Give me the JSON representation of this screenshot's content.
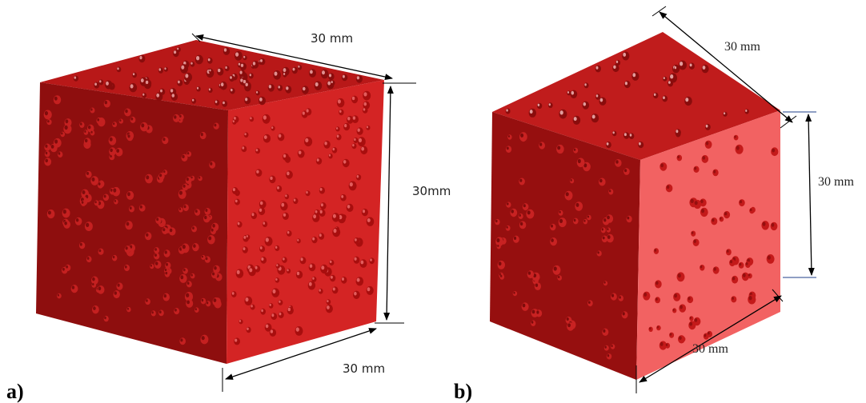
{
  "panels": [
    {
      "label": "a)",
      "dimensions": [
        "30 mm",
        "30mm",
        "30 mm"
      ]
    },
    {
      "label": "b)",
      "dimensions": [
        "30 mm",
        "30 mm",
        "30 mm"
      ]
    }
  ]
}
